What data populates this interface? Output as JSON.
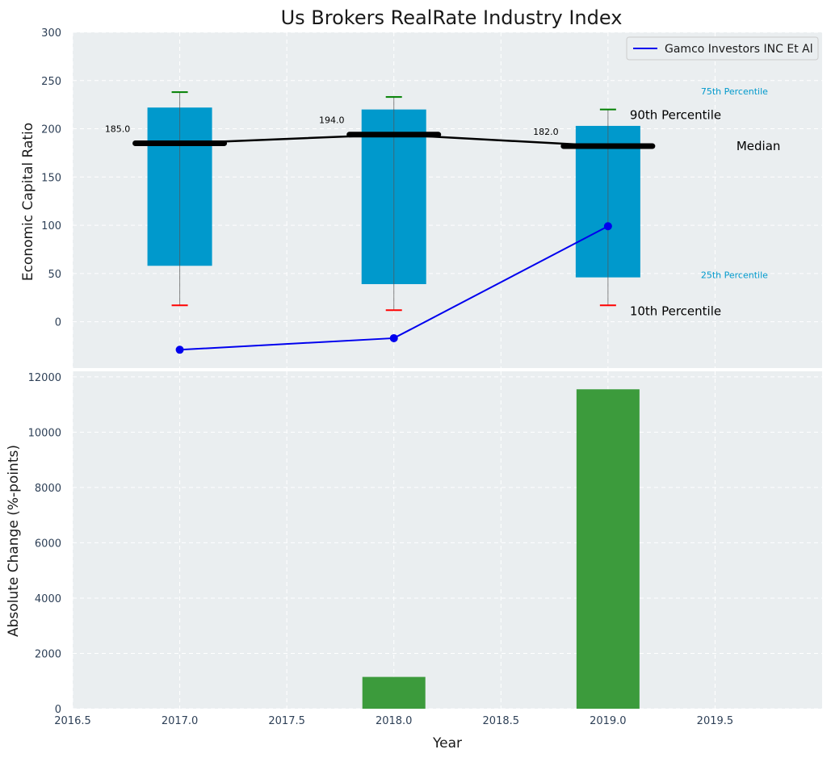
{
  "title": "Us Brokers RealRate Industry Index",
  "colors": {
    "panel_bg": "#eaeef0",
    "box": "#0099cc",
    "median": "#000000",
    "p90_cap": "#008000",
    "p10_cap": "#ff0000",
    "series_line": "#0000ee",
    "bars": "#3c9b3c",
    "percentile_label": "#0099cc"
  },
  "chart_data": [
    {
      "type": "box",
      "title": "Us Brokers RealRate Industry Index",
      "ylabel": "Economic Capital Ratio",
      "xlim": [
        2016.5,
        2020.0
      ],
      "ylim": [
        -48,
        300
      ],
      "yticks": [
        "0",
        "50",
        "100",
        "150",
        "200",
        "250",
        "300"
      ],
      "grid": true,
      "legend_position": "top-right",
      "boxes": [
        {
          "x": 2017,
          "p10": 17,
          "p25": 58,
          "median": 185,
          "p75": 222,
          "p90": 238,
          "median_label": "185.0"
        },
        {
          "x": 2018,
          "p10": 12,
          "p25": 39,
          "median": 194,
          "p75": 220,
          "p90": 233,
          "median_label": "194.0"
        },
        {
          "x": 2019,
          "p10": 17,
          "p25": 46,
          "median": 182,
          "p75": 203,
          "p90": 220,
          "median_label": "182.0"
        }
      ],
      "series": [
        {
          "name": "Gamco Investors INC Et Al",
          "x": [
            2017,
            2018,
            2019
          ],
          "values": [
            -29,
            -17,
            99
          ]
        }
      ],
      "annotations": {
        "p90": "90th Percentile",
        "p75": "75th Percentile",
        "median": "Median",
        "p25": "25th Percentile",
        "p10": "10th Percentile"
      }
    },
    {
      "type": "bar",
      "xlabel": "Year",
      "ylabel": "Absolute Change (%-points)",
      "xlim": [
        2016.5,
        2020.0
      ],
      "ylim": [
        0,
        12200
      ],
      "xticks": [
        "2016.5",
        "2017.0",
        "2017.5",
        "2018.0",
        "2018.5",
        "2019.0",
        "2019.5"
      ],
      "yticks": [
        "0",
        "2000",
        "4000",
        "6000",
        "8000",
        "10000",
        "12000"
      ],
      "grid": true,
      "x": [
        2017,
        2018,
        2019
      ],
      "values": [
        0,
        1150,
        11550
      ]
    }
  ]
}
